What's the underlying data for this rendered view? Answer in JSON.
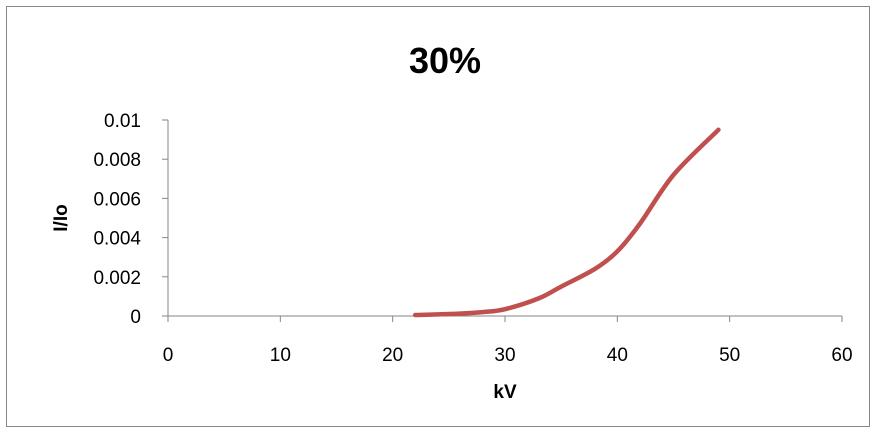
{
  "chart_data": {
    "type": "line",
    "title": "30%",
    "xlabel": "kV",
    "ylabel": "I/Io",
    "xlim": [
      0,
      60
    ],
    "ylim": [
      0,
      0.01
    ],
    "x_ticks": [
      0,
      10,
      20,
      30,
      40,
      50,
      60
    ],
    "x_tick_labels": [
      "0",
      "10",
      "20",
      "30",
      "40",
      "50",
      "60"
    ],
    "y_ticks": [
      0,
      0.002,
      0.004,
      0.006,
      0.008,
      0.01
    ],
    "y_tick_labels": [
      "0",
      "0.002",
      "0.004",
      "0.006",
      "0.008",
      "0.01"
    ],
    "grid": false,
    "legend": "none",
    "series": [
      {
        "color": "#C0504D",
        "x": [
          22,
          25,
          28,
          30,
          33,
          35,
          38,
          40,
          42,
          45,
          49
        ],
        "y": [
          5e-05,
          0.0001,
          0.0002,
          0.00035,
          0.0009,
          0.0015,
          0.0024,
          0.0033,
          0.0047,
          0.0072,
          0.0095
        ]
      }
    ]
  }
}
